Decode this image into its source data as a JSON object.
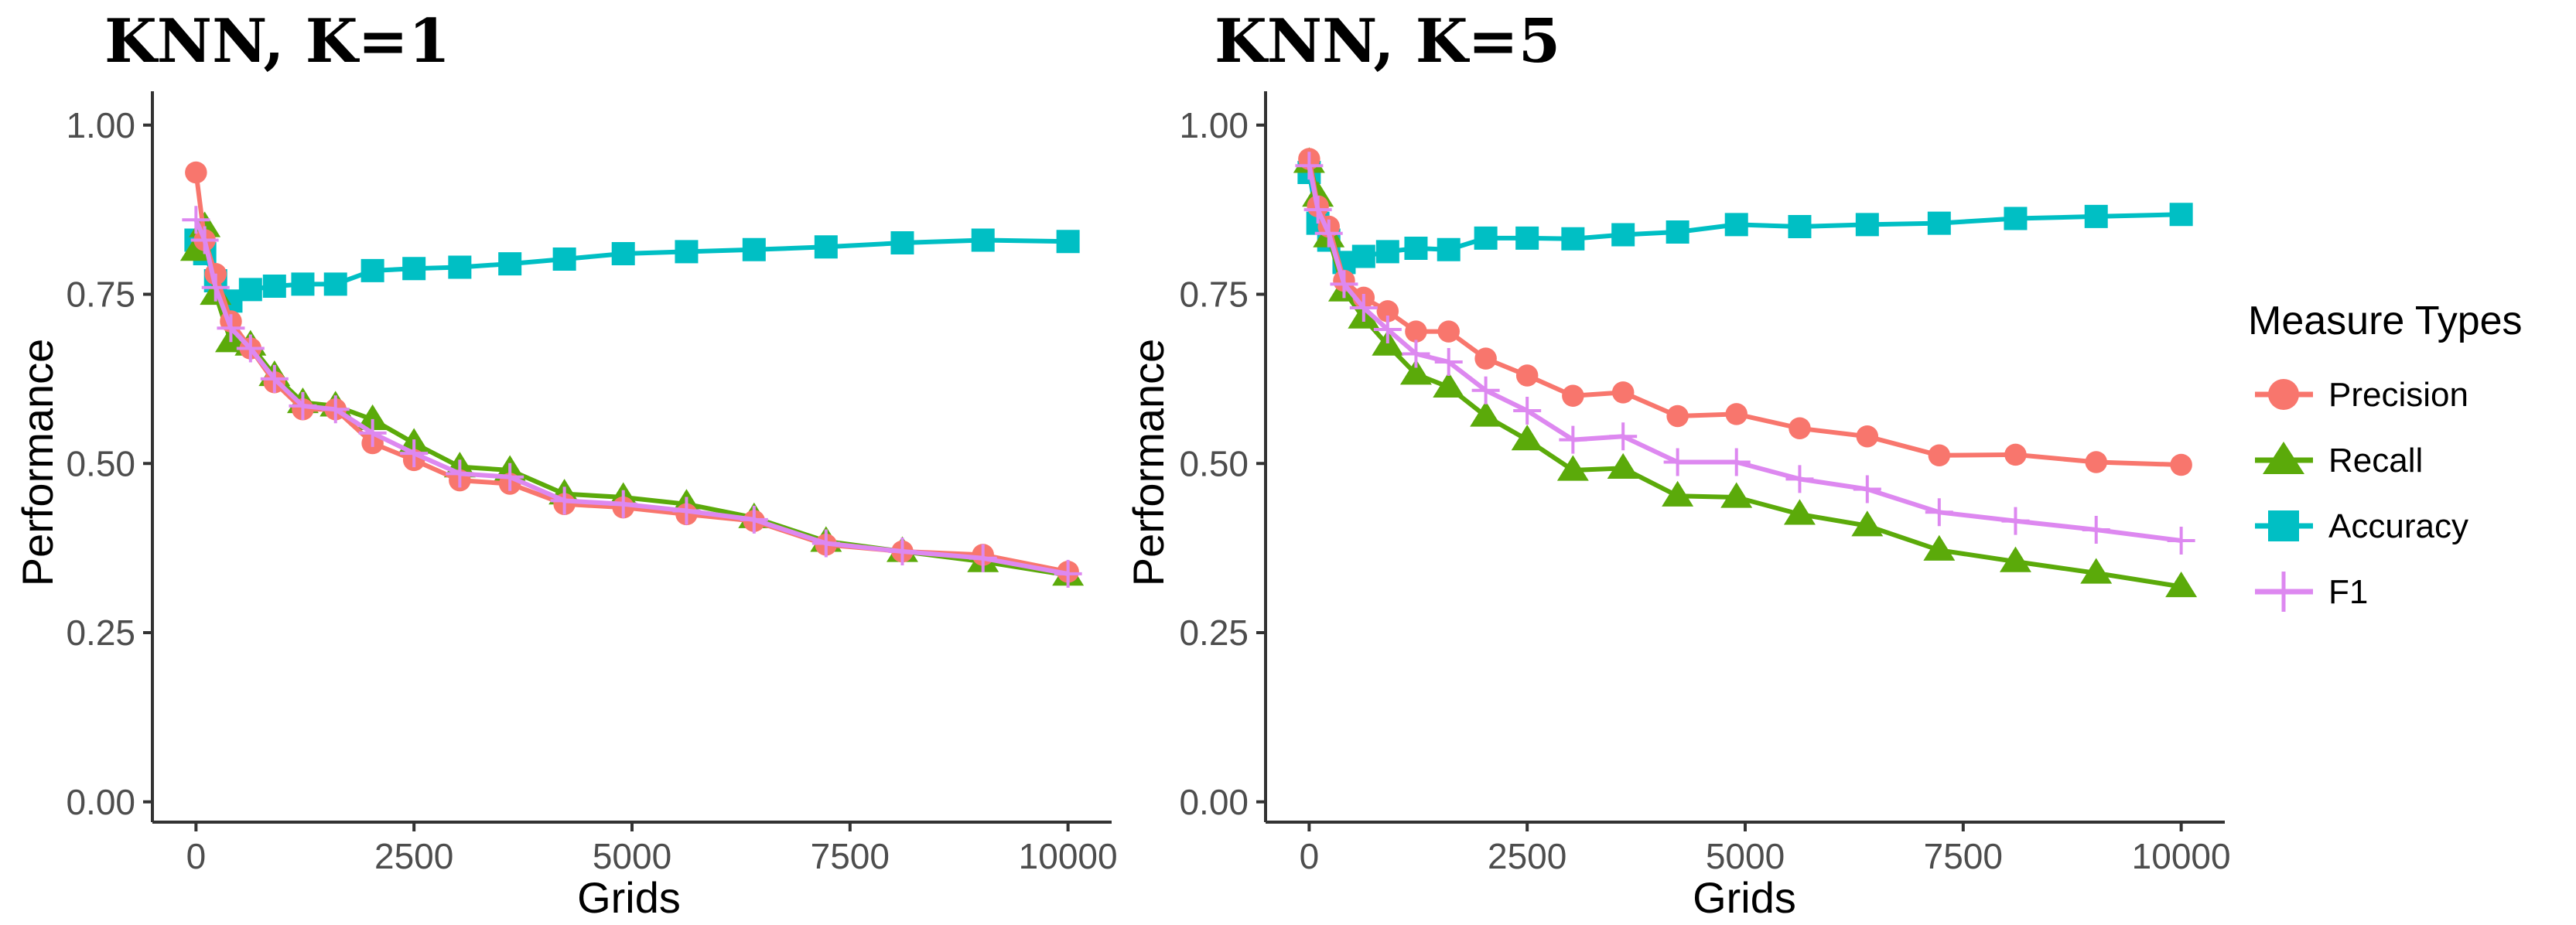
{
  "chart_data": [
    {
      "type": "line",
      "title": "KNN, K=1",
      "xlabel": "Grids",
      "ylabel": "Performance",
      "xlim": [
        -500,
        10500
      ],
      "ylim": [
        -0.03,
        1.05
      ],
      "xticks": [
        0,
        2500,
        5000,
        7500,
        10000
      ],
      "xtick_labels": [
        "0",
        "2500",
        "5000",
        "7500",
        "10000"
      ],
      "yticks": [
        0,
        0.25,
        0.5,
        0.75,
        1
      ],
      "ytick_labels": [
        "0.00",
        "0.25",
        "0.50",
        "0.75",
        "1.00"
      ],
      "grid": false,
      "x": [
        0,
        100,
        225,
        400,
        625,
        900,
        1225,
        1600,
        2025,
        2500,
        3025,
        3600,
        4225,
        4900,
        5625,
        6400,
        7225,
        8100,
        9025,
        10000
      ],
      "series": [
        {
          "name": "Precision",
          "values": [
            0.93,
            0.83,
            0.78,
            0.71,
            0.67,
            0.62,
            0.58,
            0.58,
            0.53,
            0.505,
            0.475,
            0.47,
            0.44,
            0.435,
            0.425,
            0.415,
            0.38,
            0.37,
            0.365,
            0.34
          ]
        },
        {
          "name": "Recall",
          "values": [
            0.815,
            0.85,
            0.75,
            0.68,
            0.675,
            0.63,
            0.59,
            0.585,
            0.565,
            0.53,
            0.495,
            0.49,
            0.455,
            0.45,
            0.44,
            0.42,
            0.385,
            0.37,
            0.355,
            0.335
          ]
        },
        {
          "name": "Accuracy",
          "values": [
            0.83,
            0.81,
            0.77,
            0.74,
            0.757,
            0.762,
            0.765,
            0.765,
            0.785,
            0.788,
            0.79,
            0.795,
            0.802,
            0.81,
            0.813,
            0.816,
            0.82,
            0.826,
            0.83,
            0.828
          ]
        },
        {
          "name": "F1",
          "values": [
            0.86,
            0.83,
            0.76,
            0.7,
            0.67,
            0.625,
            0.585,
            0.58,
            0.545,
            0.515,
            0.485,
            0.48,
            0.445,
            0.44,
            0.43,
            0.417,
            0.382,
            0.37,
            0.36,
            0.337
          ]
        }
      ]
    },
    {
      "type": "line",
      "title": "KNN, K=5",
      "xlabel": "Grids",
      "ylabel": "Performance",
      "xlim": [
        -500,
        10500
      ],
      "ylim": [
        -0.03,
        1.05
      ],
      "xticks": [
        0,
        2500,
        5000,
        7500,
        10000
      ],
      "xtick_labels": [
        "0",
        "2500",
        "5000",
        "7500",
        "10000"
      ],
      "yticks": [
        0,
        0.25,
        0.5,
        0.75,
        1
      ],
      "ytick_labels": [
        "0.00",
        "0.25",
        "0.50",
        "0.75",
        "1.00"
      ],
      "grid": false,
      "x": [
        0,
        100,
        225,
        400,
        625,
        900,
        1225,
        1600,
        2025,
        2500,
        3025,
        3600,
        4225,
        4900,
        5625,
        6400,
        7225,
        8100,
        9025,
        10000
      ],
      "series": [
        {
          "name": "Precision",
          "values": [
            0.95,
            0.88,
            0.85,
            0.77,
            0.745,
            0.725,
            0.695,
            0.695,
            0.655,
            0.63,
            0.6,
            0.605,
            0.57,
            0.573,
            0.552,
            0.54,
            0.512,
            0.513,
            0.502,
            0.498
          ]
        },
        {
          "name": "Recall",
          "values": [
            0.945,
            0.895,
            0.835,
            0.755,
            0.715,
            0.675,
            0.632,
            0.613,
            0.57,
            0.535,
            0.49,
            0.493,
            0.452,
            0.45,
            0.425,
            0.408,
            0.372,
            0.355,
            0.338,
            0.318
          ]
        },
        {
          "name": "Accuracy",
          "values": [
            0.93,
            0.855,
            0.83,
            0.797,
            0.806,
            0.813,
            0.818,
            0.816,
            0.833,
            0.833,
            0.832,
            0.838,
            0.842,
            0.853,
            0.85,
            0.853,
            0.855,
            0.862,
            0.865,
            0.868
          ]
        },
        {
          "name": "F1",
          "values": [
            0.94,
            0.875,
            0.84,
            0.765,
            0.73,
            0.698,
            0.662,
            0.65,
            0.608,
            0.578,
            0.535,
            0.54,
            0.502,
            0.502,
            0.477,
            0.462,
            0.428,
            0.415,
            0.402,
            0.386
          ]
        }
      ]
    }
  ],
  "legend": {
    "title": "Measure Types",
    "position": "right",
    "items": [
      {
        "name": "Precision",
        "label": "Precision",
        "color": "#F8766D",
        "marker": "circle"
      },
      {
        "name": "Recall",
        "label": "Recall",
        "color": "#5BAA0A",
        "marker": "triangle"
      },
      {
        "name": "Accuracy",
        "label": "Accuracy",
        "color": "#00BFC4",
        "marker": "square"
      },
      {
        "name": "F1",
        "label": "F1",
        "color": "#DD88F0",
        "marker": "cross"
      }
    ]
  },
  "colors": {
    "Precision": "#F8766D",
    "Recall": "#5BAA0A",
    "Accuracy": "#00BFC4",
    "F1": "#DD88F0",
    "axis": "#333333"
  }
}
